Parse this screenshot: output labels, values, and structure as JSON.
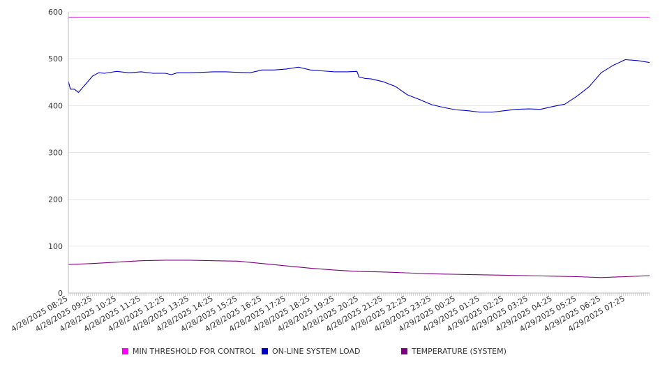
{
  "chart_data": {
    "type": "line",
    "title": "",
    "xlabel": "",
    "ylabel": "",
    "ylim": [
      0,
      600
    ],
    "y_ticks": [
      0,
      100,
      200,
      300,
      400,
      500,
      600
    ],
    "grid": "horizontal",
    "legend_position": "bottom",
    "x_tick_labels": [
      "4/28/2025 08:25",
      "4/28/2025 09:25",
      "4/28/2025 10:25",
      "4/28/2025 11:25",
      "4/28/2025 12:25",
      "4/28/2025 13:25",
      "4/28/2025 14:25",
      "4/28/2025 15:25",
      "4/28/2025 16:25",
      "4/28/2025 17:25",
      "4/28/2025 18:25",
      "4/28/2025 19:25",
      "4/28/2025 20:25",
      "4/28/2025 21:25",
      "4/28/2025 22:25",
      "4/28/2025 23:25",
      "4/29/2025 00:25",
      "4/29/2025 01:25",
      "4/29/2025 02:25",
      "4/29/2025 03:25",
      "4/29/2025 04:25",
      "4/29/2025 05:25",
      "4/29/2025 06:25",
      "4/29/2025 07:25"
    ],
    "x_start": "4/28/2025 08:25",
    "x_end": "4/29/2025 08:25",
    "series": [
      {
        "name": "MIN THRESHOLD FOR CONTROL",
        "color": "#ff00ff",
        "x": [
          "4/28/2025 08:25",
          "4/29/2025 08:25"
        ],
        "values": [
          588,
          588
        ]
      },
      {
        "name": "ON-LINE SYSTEM LOAD",
        "color": "#0000cc",
        "x": [
          "4/28/2025 08:25",
          "4/28/2025 08:30",
          "4/28/2025 08:40",
          "4/28/2025 08:50",
          "4/28/2025 09:00",
          "4/28/2025 09:10",
          "4/28/2025 09:25",
          "4/28/2025 09:40",
          "4/28/2025 09:55",
          "4/28/2025 10:10",
          "4/28/2025 10:25",
          "4/28/2025 10:55",
          "4/28/2025 11:25",
          "4/28/2025 11:55",
          "4/28/2025 12:25",
          "4/28/2025 12:40",
          "4/28/2025 12:55",
          "4/28/2025 13:25",
          "4/28/2025 13:55",
          "4/28/2025 14:25",
          "4/28/2025 14:55",
          "4/28/2025 15:25",
          "4/28/2025 15:55",
          "4/28/2025 16:25",
          "4/28/2025 16:55",
          "4/28/2025 17:25",
          "4/28/2025 17:55",
          "4/28/2025 18:25",
          "4/28/2025 18:55",
          "4/28/2025 19:25",
          "4/28/2025 19:55",
          "4/28/2025 20:20",
          "4/28/2025 20:25",
          "4/28/2025 20:40",
          "4/28/2025 20:55",
          "4/28/2025 21:25",
          "4/28/2025 21:55",
          "4/28/2025 22:25",
          "4/28/2025 22:55",
          "4/28/2025 23:25",
          "4/28/2025 23:55",
          "4/29/2025 00:25",
          "4/29/2025 00:55",
          "4/29/2025 01:25",
          "4/29/2025 01:55",
          "4/29/2025 02:25",
          "4/29/2025 02:55",
          "4/29/2025 03:25",
          "4/29/2025 03:55",
          "4/29/2025 04:25",
          "4/29/2025 04:55",
          "4/29/2025 05:25",
          "4/29/2025 05:55",
          "4/29/2025 06:25",
          "4/29/2025 06:55",
          "4/29/2025 07:25",
          "4/29/2025 07:55",
          "4/29/2025 08:25"
        ],
        "values": [
          452,
          435,
          435,
          428,
          438,
          448,
          463,
          470,
          469,
          471,
          473,
          470,
          472,
          469,
          469,
          466,
          470,
          470,
          471,
          472,
          472,
          471,
          470,
          476,
          476,
          478,
          482,
          476,
          474,
          472,
          472,
          473,
          461,
          458,
          457,
          451,
          441,
          423,
          413,
          402,
          396,
          391,
          389,
          386,
          386,
          389,
          392,
          393,
          392,
          398,
          403,
          420,
          440,
          470,
          486,
          498,
          496,
          492
        ]
      },
      {
        "name": "TEMPERATURE (SYSTEM)",
        "color": "#800080",
        "x": [
          "4/28/2025 08:25",
          "4/28/2025 09:25",
          "4/28/2025 10:25",
          "4/28/2025 11:25",
          "4/28/2025 12:25",
          "4/28/2025 13:25",
          "4/28/2025 14:25",
          "4/28/2025 15:25",
          "4/28/2025 16:25",
          "4/28/2025 17:25",
          "4/28/2025 18:25",
          "4/28/2025 19:25",
          "4/28/2025 20:25",
          "4/28/2025 21:25",
          "4/28/2025 22:25",
          "4/28/2025 23:25",
          "4/29/2025 00:25",
          "4/29/2025 01:25",
          "4/29/2025 02:25",
          "4/29/2025 03:25",
          "4/29/2025 04:25",
          "4/29/2025 05:25",
          "4/29/2025 06:25",
          "4/29/2025 07:25",
          "4/29/2025 08:25"
        ],
        "values": [
          61,
          63,
          66,
          69,
          70,
          70,
          69,
          68,
          63,
          58,
          53,
          49,
          46,
          45,
          43,
          41,
          40,
          39,
          38,
          37,
          36,
          35,
          33,
          35,
          37
        ]
      }
    ]
  }
}
